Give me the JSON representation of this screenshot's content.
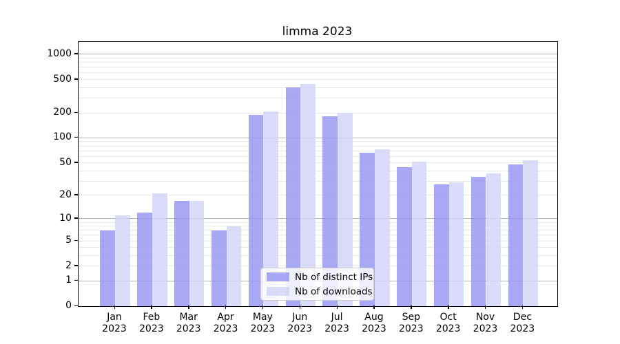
{
  "chart_data": {
    "type": "bar",
    "title": "limma 2023",
    "categories": [
      "Jan 2023",
      "Feb 2023",
      "Mar 2023",
      "Apr 2023",
      "May 2023",
      "Jun 2023",
      "Jul 2023",
      "Aug 2023",
      "Sep 2023",
      "Oct 2023",
      "Nov 2023",
      "Dec 2023"
    ],
    "series": [
      {
        "name": "Nb of distinct IPs",
        "color": "#9292f2",
        "opacity": 0.8,
        "values": [
          7,
          12,
          17,
          7,
          190,
          405,
          183,
          66,
          44,
          27,
          34,
          48
        ]
      },
      {
        "name": "Nb of downloads",
        "color": "#d2d2f9",
        "opacity": 0.8,
        "values": [
          11,
          21,
          17,
          8,
          207,
          445,
          200,
          73,
          52,
          29,
          37,
          54
        ]
      }
    ],
    "yticks": [
      0,
      1,
      2,
      5,
      10,
      20,
      50,
      100,
      200,
      500,
      1000
    ],
    "ylim": [
      0,
      1400
    ],
    "yscale": "log10(1+v)",
    "grid": "horizontal major+minor",
    "legend_position": "lower center",
    "colors": {
      "bar_dark": "#9292f2",
      "bar_light": "#d2d2f9",
      "grid_major": "#b2b2b2",
      "grid_minor": "#e8e8e8",
      "axis": "#000000"
    }
  }
}
